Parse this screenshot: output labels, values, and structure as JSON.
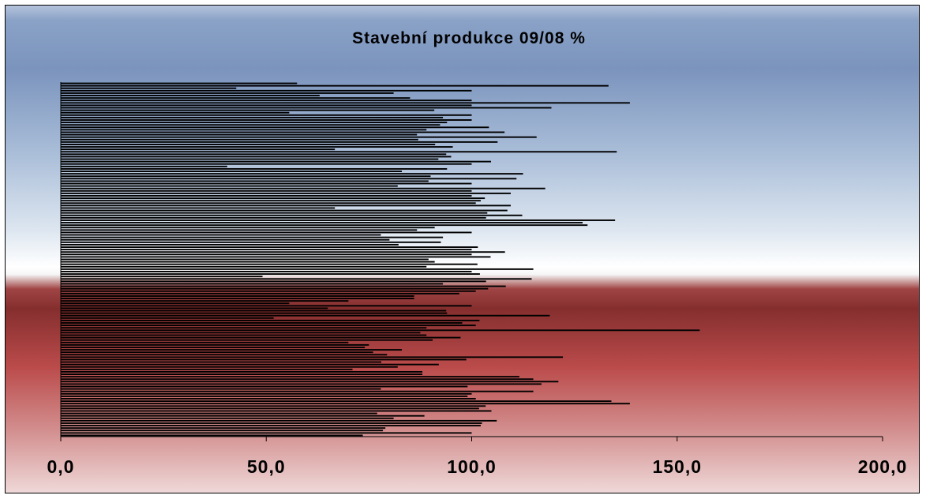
{
  "chart_data": {
    "type": "bar",
    "orientation": "horizontal",
    "title": "Stavební produkce 09/08 %",
    "xlabel": "",
    "ylabel": "",
    "xlim": [
      0,
      200
    ],
    "x_ticks": [
      "0,0",
      "50,0",
      "100,0",
      "150,0",
      "200,0"
    ],
    "grid": false,
    "legend": "none",
    "bar_color": "#000000",
    "background": {
      "top": "#7f98bf",
      "middle": "#ffffff",
      "lower": "#8b2f2f",
      "bottom": "#efd6d6"
    },
    "series": [
      {
        "values": [
          57.5,
          133.3,
          42.7,
          100.0,
          81.0,
          63.0,
          85.0,
          100.0,
          138.5,
          100.0,
          119.4,
          90.9,
          55.6,
          100.0,
          93.0,
          100.0,
          94.0,
          92.3,
          104.2,
          89.0,
          108.0,
          86.7,
          115.8,
          87.0,
          106.3,
          91.1,
          95.4,
          66.7,
          135.3,
          93.8,
          95.0,
          91.9,
          104.7,
          100.0,
          40.5,
          94.0,
          83.0,
          112.5,
          90.0,
          110.9,
          89.5,
          100.0,
          82.0,
          117.9,
          100.0,
          109.5,
          100.0,
          103.2,
          102.2,
          101.0,
          109.5,
          66.7,
          108.7,
          103.8,
          112.3,
          103.5,
          134.9,
          127.0,
          128.2,
          91.0,
          86.7,
          100.0,
          77.9,
          93.0,
          80.0,
          92.5,
          82.2,
          101.5,
          100.0,
          108.1,
          100.0,
          104.6,
          89.5,
          91.0,
          101.4,
          89.0,
          115.0,
          100.0,
          102.0,
          49.1,
          114.6,
          103.5,
          93.0,
          108.3,
          104.0,
          101.0,
          97.0,
          86.0,
          86.0,
          70.0,
          55.6,
          100.0,
          65.0,
          93.8,
          94.0,
          119.0,
          51.8,
          101.9,
          97.7,
          101.0,
          89.0,
          155.5,
          87.5,
          89.0,
          97.3,
          90.5,
          70.0,
          75.0,
          74.0,
          83.0,
          76.0,
          79.4,
          122.2,
          98.7,
          78.0,
          92.0,
          82.0,
          71.0,
          88.0,
          88.0,
          111.6,
          115.0,
          121.1,
          117.0,
          99.0,
          77.9,
          115.0,
          100.0,
          99.0,
          101.0,
          134.0,
          138.5,
          103.4,
          101.8,
          104.8,
          77.0,
          88.5,
          81.0,
          106.1,
          102.5,
          102.2,
          79.0,
          78.4,
          100.0,
          73.5
        ]
      }
    ]
  }
}
